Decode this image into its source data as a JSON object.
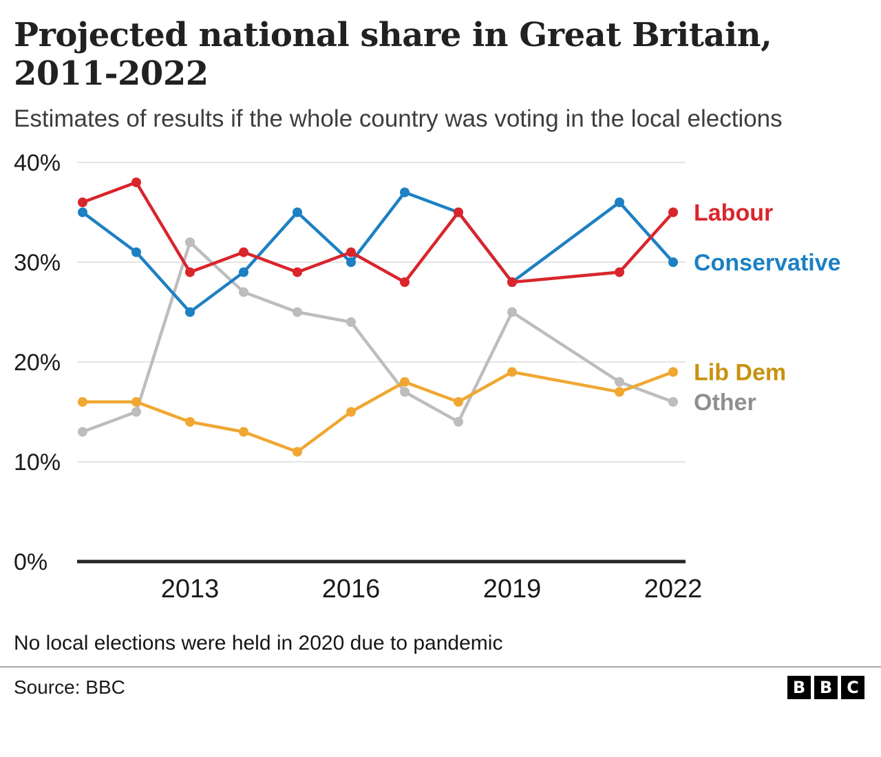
{
  "header": {
    "title": "Projected national share in Great Britain, 2011-2022",
    "subtitle": "Estimates of results if the whole country was voting in the local elections"
  },
  "chart_data": {
    "type": "line",
    "x": [
      2011,
      2012,
      2013,
      2014,
      2015,
      2016,
      2017,
      2018,
      2019,
      2021,
      2022
    ],
    "xlim": [
      2011,
      2022
    ],
    "ylim": [
      0,
      40
    ],
    "grid": "horizontal",
    "legend_position": "right-of-lines",
    "yticks": [
      {
        "value": 40,
        "label": "40%"
      },
      {
        "value": 30,
        "label": "30%"
      },
      {
        "value": 20,
        "label": "20%"
      },
      {
        "value": 10,
        "label": "10%"
      },
      {
        "value": 0,
        "label": "0%"
      }
    ],
    "xticks": [
      {
        "value": 2013,
        "label": "2013"
      },
      {
        "value": 2016,
        "label": "2016"
      },
      {
        "value": 2019,
        "label": "2019"
      },
      {
        "value": 2022,
        "label": "2022"
      }
    ],
    "series": [
      {
        "name": "Labour",
        "color": "#d9252c",
        "label_color": "#d9252c",
        "values": [
          36,
          38,
          29,
          31,
          29,
          31,
          28,
          35,
          28,
          29,
          35
        ]
      },
      {
        "name": "Conservative",
        "color": "#1d80c3",
        "label_color": "#1d80c3",
        "values": [
          35,
          31,
          25,
          29,
          35,
          30,
          37,
          35,
          28,
          36,
          30
        ]
      },
      {
        "name": "Lib Dem",
        "color": "#f0a732",
        "label_color": "#c7920e",
        "values": [
          16,
          16,
          14,
          13,
          11,
          15,
          18,
          16,
          19,
          17,
          19
        ]
      },
      {
        "name": "Other",
        "color": "#bdbdbd",
        "label_color": "#8f8f8f",
        "values": [
          13,
          15,
          32,
          27,
          25,
          24,
          17,
          14,
          25,
          18,
          16
        ]
      }
    ],
    "colors": {
      "gridline": "#e4e4e4",
      "baseline": "#262626",
      "tick_text": "#1a1a1a"
    }
  },
  "footnote": "No local elections were held in 2020 due to pandemic",
  "source": "Source: BBC",
  "logo": {
    "letters": [
      "B",
      "B",
      "C"
    ]
  }
}
